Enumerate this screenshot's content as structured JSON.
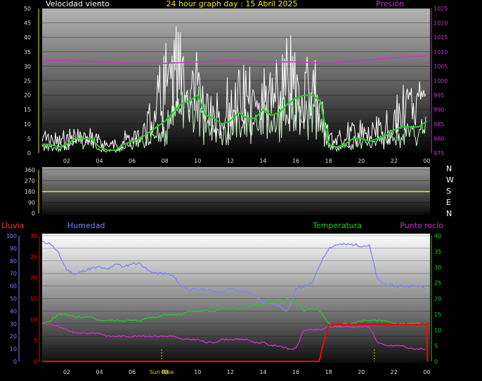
{
  "title": "24 hour graph day : 15 Abril 2025",
  "colors": {
    "wind": "#ffffff",
    "wind_avg": "#22cc22",
    "wind_low": "#c8f0c8",
    "pressure": "#cc33cc",
    "direction": "#e6e62e",
    "humidity": "#8080ff",
    "temperature": "#22cc22",
    "dewpoint": "#cc33cc",
    "rain": "#ff0000",
    "sun": "#e6c800"
  },
  "chart_data": [
    {
      "type": "line",
      "labels": {
        "left": "Velocidad viento",
        "right": "Presión"
      },
      "y_ticks": [
        "0",
        "5",
        "10",
        "15",
        "20",
        "25",
        "30",
        "35",
        "40",
        "45",
        "50"
      ],
      "y2_ticks": [
        "975",
        "980",
        "985",
        "990",
        "995",
        "1000",
        "1005",
        "1010",
        "1015",
        "1020",
        "1025"
      ],
      "x_ticks": [
        "02",
        "04",
        "06",
        "08",
        "10",
        "12",
        "14",
        "16",
        "18",
        "20",
        "22",
        "00"
      ],
      "ylim": [
        0,
        50
      ],
      "y2lim": [
        975,
        1025
      ],
      "x_range": [
        0.5,
        24.2
      ],
      "series": [
        {
          "key": "gust",
          "x": [
            0.5,
            1,
            1.5,
            2,
            2.5,
            3,
            3.5,
            4,
            4.5,
            5,
            5.5,
            6,
            6.5,
            7,
            7.5,
            8,
            8.5,
            9,
            9.5,
            10,
            10.5,
            11,
            11.5,
            12,
            12.5,
            13,
            13.5,
            14,
            14.5,
            15,
            15.5,
            16,
            16.5,
            17,
            17.5,
            18,
            18.5,
            19,
            19.5,
            20,
            20.5,
            21,
            21.5,
            22,
            22.5,
            23,
            23.5,
            24
          ],
          "values": [
            7,
            7,
            5,
            7,
            8,
            7,
            8,
            5,
            4,
            4,
            6,
            7,
            9,
            14,
            20,
            30,
            33,
            35,
            30,
            28,
            22,
            24,
            20,
            22,
            30,
            24,
            22,
            26,
            24,
            26,
            32,
            32,
            30,
            30,
            24,
            8,
            6,
            8,
            10,
            9,
            8,
            10,
            11,
            14,
            20,
            21,
            21,
            22
          ]
        },
        {
          "key": "average",
          "x": [
            0.5,
            1,
            1.5,
            2,
            2.5,
            3,
            3.5,
            4,
            4.5,
            5,
            5.5,
            6,
            6.5,
            7,
            7.5,
            8,
            8.5,
            9,
            9.5,
            10,
            10.5,
            11,
            11.5,
            12,
            12.5,
            13,
            13.5,
            14,
            14.5,
            15,
            15.5,
            16,
            16.5,
            17,
            17.5,
            18,
            18.5,
            19,
            19.5,
            20,
            20.5,
            21,
            21.5,
            22,
            22.5,
            23,
            23.5,
            24
          ],
          "values": [
            3,
            3,
            2,
            3,
            5,
            5,
            5,
            2,
            1,
            1,
            3,
            4,
            5,
            7,
            9,
            11,
            14,
            17,
            18,
            20,
            13,
            12,
            10,
            11,
            14,
            12,
            12,
            15,
            13,
            14,
            17,
            19,
            20,
            20,
            18,
            3,
            2,
            3,
            5,
            5,
            4,
            5,
            6,
            8,
            9,
            9,
            9,
            11
          ]
        },
        {
          "key": "pressure",
          "axis": "y2",
          "x": [
            0.5,
            2,
            4,
            6,
            8,
            10,
            12,
            14,
            16,
            18,
            20,
            22,
            24
          ],
          "values": [
            1007,
            1007,
            1006.5,
            1006,
            1006,
            1006.5,
            1007,
            1006.5,
            1006.5,
            1006,
            1007,
            1008,
            1008.5
          ]
        }
      ]
    },
    {
      "type": "line",
      "labels": {
        "right": [
          "N",
          "W",
          "S",
          "E",
          "N"
        ]
      },
      "y_ticks": [
        "0",
        "90",
        "180",
        "270",
        "360"
      ],
      "ylim": [
        0,
        360
      ],
      "series": [
        {
          "key": "direction",
          "x": [
            0.5,
            24.2
          ],
          "values": [
            180,
            180
          ]
        }
      ]
    },
    {
      "type": "line",
      "labels": {
        "rain": "Lluvia",
        "humidity": "Humedad",
        "temperature": "Temperatura",
        "dewpoint": "Punto rocío"
      },
      "y_ticks_hum": [
        "0",
        "10",
        "20",
        "30",
        "40",
        "50",
        "60",
        "70",
        "80",
        "90",
        "100"
      ],
      "y_ticks_rain": [
        "0",
        "5",
        "10",
        "15",
        "20",
        "25",
        "30"
      ],
      "y2_ticks": [
        "0",
        "5",
        "10",
        "15",
        "20",
        "25",
        "30",
        "35",
        "40"
      ],
      "x_ticks": [
        "02",
        "04",
        "06",
        "08",
        "10",
        "12",
        "14",
        "16",
        "18",
        "20",
        "22",
        "00"
      ],
      "sun_label": "Sun Rise",
      "x_range": [
        0.5,
        24.2
      ],
      "hum_lim": [
        0,
        100
      ],
      "rain_lim": [
        0,
        30
      ],
      "temp_lim": [
        0,
        40
      ],
      "sun_marks": [
        7.8,
        20.8
      ],
      "series": [
        {
          "key": "humidity",
          "axis": "hum",
          "x": [
            0.5,
            1,
            1.5,
            2,
            2.5,
            3,
            3.5,
            4,
            4.5,
            5,
            5.5,
            6,
            6.5,
            7,
            7.5,
            8,
            8.5,
            9,
            9.5,
            10,
            10.5,
            11,
            11.5,
            12,
            12.5,
            13,
            13.5,
            14,
            14.5,
            15,
            15.5,
            16,
            16.5,
            17,
            17.5,
            18,
            18.5,
            19,
            19.5,
            20,
            20.5,
            21,
            21.5,
            22,
            22.5,
            23,
            23.5,
            24
          ],
          "values": [
            95,
            94,
            86,
            73,
            69,
            72,
            74,
            75,
            73,
            78,
            75,
            78,
            78,
            72,
            70,
            70,
            68,
            60,
            57,
            57,
            57,
            56,
            55,
            58,
            56,
            55,
            52,
            48,
            46,
            44,
            40,
            57,
            60,
            62,
            78,
            90,
            93,
            93,
            93,
            92,
            92,
            65,
            61,
            60,
            60,
            60,
            60,
            58
          ]
        },
        {
          "key": "temperature",
          "axis": "temp",
          "x": [
            0.5,
            1,
            1.5,
            2,
            2.5,
            3,
            3.5,
            4,
            4.5,
            5,
            5.5,
            6,
            6.5,
            7,
            7.5,
            8,
            8.5,
            9,
            9.5,
            10,
            10.5,
            11,
            11.5,
            12,
            12.5,
            13,
            13.5,
            14,
            14.5,
            15,
            15.5,
            16,
            16.5,
            17,
            17.5,
            18,
            18.5,
            19,
            19.5,
            20,
            20.5,
            21,
            21.5,
            22,
            22.5,
            23,
            23.5,
            24
          ],
          "values": [
            12,
            13,
            15,
            15,
            14,
            14,
            14,
            13,
            13,
            13,
            13,
            13,
            13,
            14,
            14,
            15,
            15,
            15,
            16,
            16,
            16,
            16,
            17,
            17,
            17,
            17,
            18,
            18,
            19,
            19,
            20,
            19,
            16,
            17,
            16,
            12,
            11,
            12,
            12,
            13,
            13,
            13,
            13,
            12,
            12,
            12,
            12,
            12
          ]
        },
        {
          "key": "dewpoint",
          "axis": "temp",
          "x": [
            0.5,
            1,
            1.5,
            2,
            2.5,
            3,
            3.5,
            4,
            4.5,
            5,
            5.5,
            6,
            6.5,
            7,
            7.5,
            8,
            8.5,
            9,
            9.5,
            10,
            10.5,
            11,
            11.5,
            12,
            12.5,
            13,
            13.5,
            14,
            14.5,
            15,
            15.5,
            16,
            16.5,
            17,
            17.5,
            18,
            18.5,
            19,
            19.5,
            20,
            20.5,
            21,
            21.5,
            22,
            22.5,
            23,
            23.5,
            24
          ],
          "values": [
            12,
            12,
            11,
            10,
            9,
            9,
            9,
            9,
            8,
            8,
            8,
            8,
            8,
            8,
            8,
            8,
            8,
            7,
            7,
            7,
            6,
            6,
            7,
            7,
            7,
            7,
            6,
            6,
            5,
            5,
            4,
            4,
            10,
            10,
            10,
            11,
            11,
            11,
            11,
            11,
            11,
            6,
            5,
            5,
            5,
            4,
            4,
            4
          ]
        },
        {
          "key": "rain",
          "axis": "rain",
          "x": [
            0.5,
            17.4,
            17.5,
            17.6,
            17.8,
            18,
            19,
            20,
            21,
            22,
            23,
            24,
            24.05
          ],
          "values": [
            0,
            0,
            1,
            3,
            6,
            8.6,
            8.8,
            8.8,
            8.8,
            8.8,
            8.8,
            8.8,
            0
          ]
        }
      ]
    }
  ]
}
